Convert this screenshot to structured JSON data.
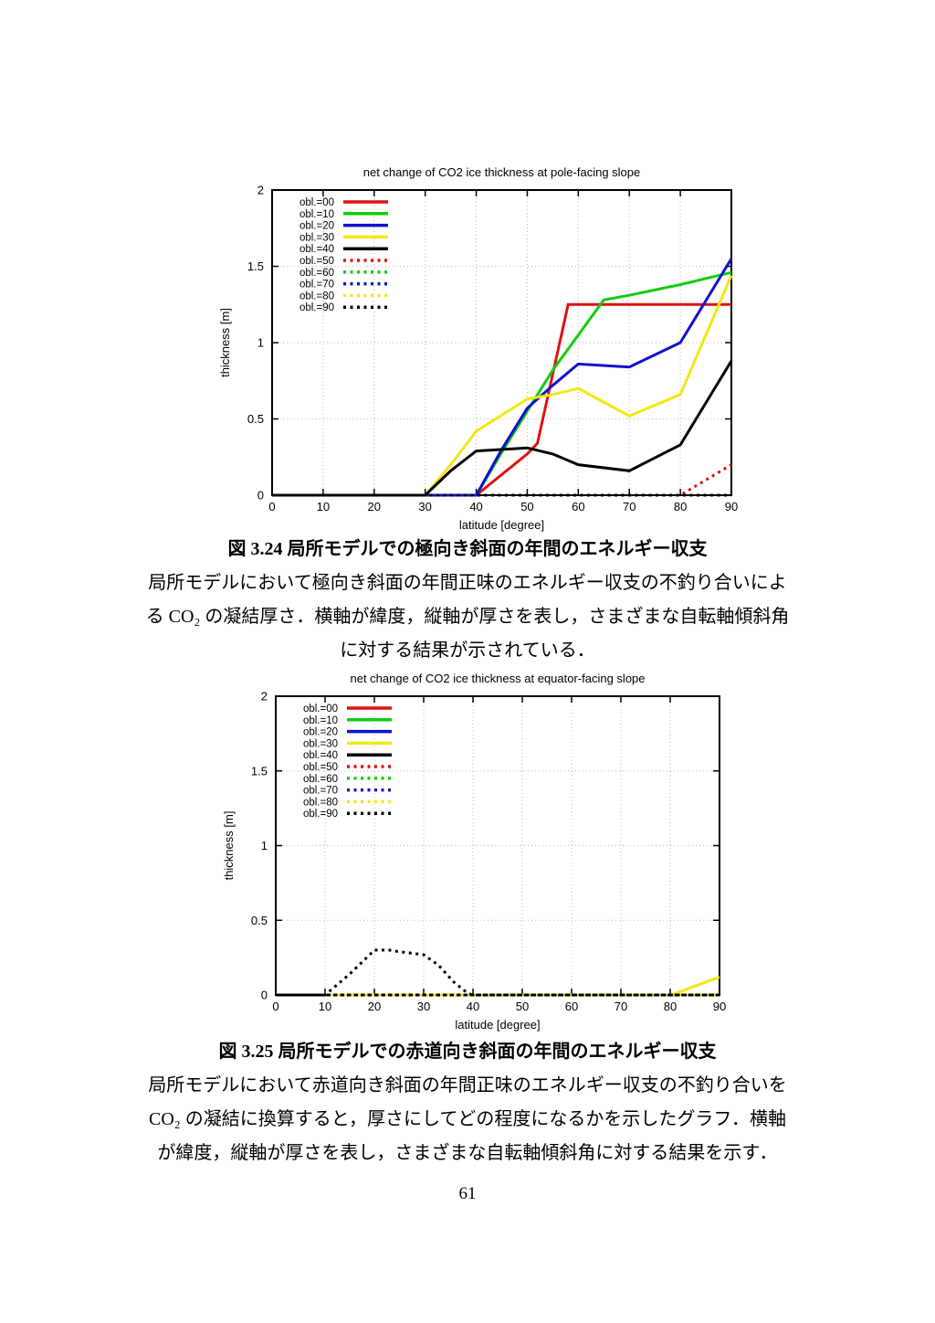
{
  "page": {
    "number": "61"
  },
  "figure1": {
    "caption_title": "図 3.24 局所モデルでの極向き斜面の年間のエネルギー収支",
    "caption_lines": [
      "局所モデルにおいて極向き斜面の年間正味のエネルギー収支の不釣り合いによ",
      "る CO₂ の凝結厚さ．横軸が緯度，縦軸が厚さを表し，さまざまな自転軸傾斜角",
      "に対する結果が示されている．"
    ]
  },
  "figure2": {
    "caption_title": "図 3.25 局所モデルでの赤道向き斜面の年間のエネルギー収支",
    "caption_lines": [
      "局所モデルにおいて赤道向き斜面の年間正味のエネルギー収支の不釣り合いを",
      "CO₂ の凝結に換算すると，厚さにしてどの程度になるかを示したグラフ．横軸",
      "が緯度，縦軸が厚さを表し，さまざまな自転軸傾斜角に対する結果を示す．"
    ]
  },
  "colors": {
    "red": "#dd1111",
    "green": "#11cc11",
    "blue": "#1111cc",
    "yellow": "#f2e713",
    "black": "#000000",
    "grid": "#b8b8b8"
  },
  "chart_data": [
    {
      "type": "line",
      "title": "net change of CO2 ice thickness at pole-facing slope",
      "xlabel": "latitude [degree]",
      "ylabel": "thickness [m]",
      "xlim": [
        0,
        90
      ],
      "ylim": [
        0,
        2
      ],
      "xticks": [
        0,
        10,
        20,
        30,
        40,
        50,
        60,
        70,
        80,
        90
      ],
      "yticks": [
        0,
        0.5,
        1,
        1.5,
        2
      ],
      "grid": true,
      "legend_position": "top-left",
      "series": [
        {
          "name": "obl.=00",
          "color": "#dd1111",
          "style": "solid",
          "points": [
            [
              0,
              0
            ],
            [
              10,
              0
            ],
            [
              20,
              0
            ],
            [
              30,
              0
            ],
            [
              40,
              0
            ],
            [
              50,
              0.27
            ],
            [
              52,
              0.34
            ],
            [
              58,
              1.25
            ],
            [
              60,
              1.25
            ],
            [
              70,
              1.25
            ],
            [
              80,
              1.25
            ],
            [
              90,
              1.25
            ]
          ]
        },
        {
          "name": "obl.=10",
          "color": "#11cc11",
          "style": "solid",
          "points": [
            [
              0,
              0
            ],
            [
              10,
              0
            ],
            [
              20,
              0
            ],
            [
              30,
              0
            ],
            [
              40,
              0
            ],
            [
              45,
              0.28
            ],
            [
              50,
              0.55
            ],
            [
              55,
              0.82
            ],
            [
              60,
              1.05
            ],
            [
              65,
              1.28
            ],
            [
              70,
              1.31
            ],
            [
              80,
              1.38
            ],
            [
              90,
              1.46
            ]
          ]
        },
        {
          "name": "obl.=20",
          "color": "#1111cc",
          "style": "solid",
          "points": [
            [
              0,
              0
            ],
            [
              10,
              0
            ],
            [
              20,
              0
            ],
            [
              30,
              0
            ],
            [
              40,
              0
            ],
            [
              45,
              0.3
            ],
            [
              50,
              0.57
            ],
            [
              55,
              0.72
            ],
            [
              60,
              0.86
            ],
            [
              70,
              0.84
            ],
            [
              80,
              1.0
            ],
            [
              90,
              1.55
            ]
          ]
        },
        {
          "name": "obl.=30",
          "color": "#f2e713",
          "style": "solid",
          "points": [
            [
              0,
              0
            ],
            [
              10,
              0
            ],
            [
              20,
              0
            ],
            [
              30,
              0
            ],
            [
              35,
              0.2
            ],
            [
              40,
              0.42
            ],
            [
              50,
              0.63
            ],
            [
              55,
              0.66
            ],
            [
              60,
              0.7
            ],
            [
              70,
              0.52
            ],
            [
              80,
              0.66
            ],
            [
              90,
              1.44
            ]
          ]
        },
        {
          "name": "obl.=40",
          "color": "#000000",
          "style": "solid",
          "points": [
            [
              0,
              0
            ],
            [
              10,
              0
            ],
            [
              20,
              0
            ],
            [
              30,
              0
            ],
            [
              35,
              0.16
            ],
            [
              40,
              0.29
            ],
            [
              50,
              0.31
            ],
            [
              55,
              0.27
            ],
            [
              60,
              0.2
            ],
            [
              70,
              0.16
            ],
            [
              80,
              0.33
            ],
            [
              90,
              0.88
            ]
          ]
        },
        {
          "name": "obl.=50",
          "color": "#dd1111",
          "style": "dotted",
          "points": [
            [
              0,
              0
            ],
            [
              10,
              0
            ],
            [
              20,
              0
            ],
            [
              30,
              0
            ],
            [
              40,
              0
            ],
            [
              50,
              0
            ],
            [
              60,
              0
            ],
            [
              70,
              0
            ],
            [
              80,
              0
            ],
            [
              90,
              0.2
            ]
          ]
        },
        {
          "name": "obl.=60",
          "color": "#11cc11",
          "style": "dotted",
          "points": [
            [
              0,
              0
            ],
            [
              30,
              0
            ],
            [
              60,
              0
            ],
            [
              90,
              0
            ]
          ]
        },
        {
          "name": "obl.=70",
          "color": "#1111cc",
          "style": "dotted",
          "points": [
            [
              0,
              0
            ],
            [
              30,
              0
            ],
            [
              60,
              0
            ],
            [
              90,
              0
            ]
          ]
        },
        {
          "name": "obl.=80",
          "color": "#f2e713",
          "style": "dotted",
          "points": [
            [
              0,
              0
            ],
            [
              30,
              0
            ],
            [
              60,
              0
            ],
            [
              90,
              0
            ]
          ]
        },
        {
          "name": "obl.=90",
          "color": "#000000",
          "style": "dotted",
          "points": [
            [
              0,
              0
            ],
            [
              30,
              0
            ],
            [
              60,
              0
            ],
            [
              90,
              0
            ]
          ]
        }
      ]
    },
    {
      "type": "line",
      "title": "net change of CO2 ice thickness at equator-facing slope",
      "xlabel": "latitude [degree]",
      "ylabel": "thickness [m]",
      "xlim": [
        0,
        90
      ],
      "ylim": [
        0,
        2
      ],
      "xticks": [
        0,
        10,
        20,
        30,
        40,
        50,
        60,
        70,
        80,
        90
      ],
      "yticks": [
        0,
        0.5,
        1,
        1.5,
        2
      ],
      "grid": true,
      "legend_position": "top-left",
      "series": [
        {
          "name": "obl.=00",
          "color": "#dd1111",
          "style": "solid",
          "points": [
            [
              0,
              0
            ],
            [
              30,
              0
            ],
            [
              60,
              0
            ],
            [
              90,
              0
            ]
          ]
        },
        {
          "name": "obl.=10",
          "color": "#11cc11",
          "style": "solid",
          "points": [
            [
              0,
              0
            ],
            [
              30,
              0
            ],
            [
              60,
              0
            ],
            [
              90,
              0
            ]
          ]
        },
        {
          "name": "obl.=20",
          "color": "#1111cc",
          "style": "solid",
          "points": [
            [
              0,
              0
            ],
            [
              30,
              0
            ],
            [
              60,
              0
            ],
            [
              90,
              0
            ]
          ]
        },
        {
          "name": "obl.=30",
          "color": "#f2e713",
          "style": "solid",
          "points": [
            [
              0,
              0
            ],
            [
              40,
              0
            ],
            [
              80,
              0
            ],
            [
              81,
              0.01
            ],
            [
              90,
              0.12
            ]
          ]
        },
        {
          "name": "obl.=40",
          "color": "#000000",
          "style": "solid",
          "points": [
            [
              0,
              0
            ],
            [
              30,
              0
            ],
            [
              60,
              0
            ],
            [
              90,
              0
            ]
          ]
        },
        {
          "name": "obl.=50",
          "color": "#dd1111",
          "style": "dotted",
          "points": [
            [
              0,
              0
            ],
            [
              30,
              0
            ],
            [
              60,
              0
            ],
            [
              90,
              0
            ]
          ]
        },
        {
          "name": "obl.=60",
          "color": "#11cc11",
          "style": "dotted",
          "points": [
            [
              0,
              0
            ],
            [
              30,
              0
            ],
            [
              60,
              0
            ],
            [
              90,
              0
            ]
          ]
        },
        {
          "name": "obl.=70",
          "color": "#1111cc",
          "style": "dotted",
          "points": [
            [
              0,
              0
            ],
            [
              30,
              0
            ],
            [
              60,
              0
            ],
            [
              90,
              0
            ]
          ]
        },
        {
          "name": "obl.=80",
          "color": "#f2e713",
          "style": "dotted",
          "points": [
            [
              0,
              0
            ],
            [
              30,
              0
            ],
            [
              60,
              0
            ],
            [
              90,
              0
            ]
          ]
        },
        {
          "name": "obl.=90",
          "color": "#000000",
          "style": "dotted",
          "points": [
            [
              0,
              0
            ],
            [
              10,
              0
            ],
            [
              15,
              0.14
            ],
            [
              20,
              0.3
            ],
            [
              23,
              0.3
            ],
            [
              25,
              0.29
            ],
            [
              30,
              0.27
            ],
            [
              33,
              0.2
            ],
            [
              36,
              0.09
            ],
            [
              39,
              0.01
            ],
            [
              40,
              0
            ],
            [
              50,
              0
            ],
            [
              60,
              0
            ],
            [
              70,
              0
            ],
            [
              80,
              0
            ],
            [
              90,
              0
            ]
          ]
        }
      ]
    }
  ]
}
